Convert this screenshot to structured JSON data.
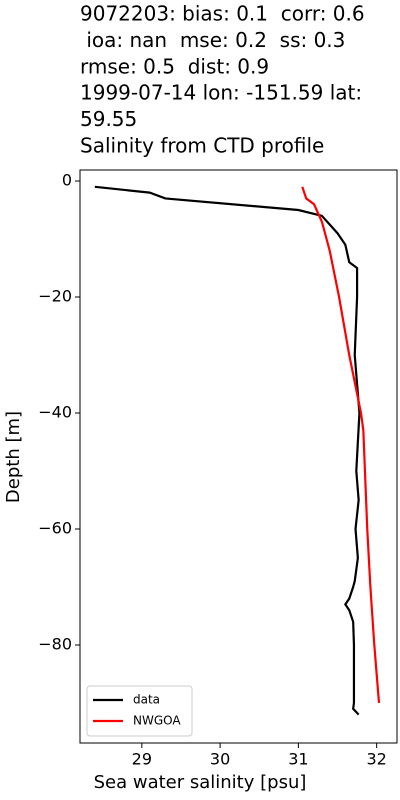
{
  "chart_data": {
    "type": "line",
    "title": [
      "9072203: bias: 0.1  corr: 0.6",
      " ioa: nan  mse: 0.2  ss: 0.3",
      "rmse: 0.5  dist: 0.9",
      "1999-07-14 lon: -151.59 lat:",
      "59.55",
      "Salinity from CTD profile"
    ],
    "xlabel": "Sea water salinity [psu]",
    "ylabel": "Depth [m]",
    "xlim": [
      28.21,
      32.26
    ],
    "ylim": [
      -96.9,
      1.9
    ],
    "xticks": [
      29,
      30,
      31,
      32
    ],
    "yticks": [
      0,
      {
        "value": -20,
        "label": "−20"
      },
      {
        "value": -40,
        "label": "−40"
      },
      {
        "value": -60,
        "label": "−60"
      },
      {
        "value": -80,
        "label": "−80"
      }
    ],
    "legend": "lower left",
    "series": [
      {
        "name": "data",
        "color": "#000000",
        "x": [
          28.4,
          29.1,
          29.3,
          31.0,
          31.3,
          31.5,
          31.6,
          31.65,
          31.75,
          31.75,
          31.72,
          31.78,
          31.74,
          31.77,
          31.73,
          31.76,
          31.72,
          31.7,
          31.65,
          31.6,
          31.65,
          31.7,
          31.71,
          31.71,
          31.7,
          31.77
        ],
        "values": [
          -1,
          -2,
          -3,
          -5,
          -6,
          -9,
          -11,
          -14,
          -15,
          -20,
          -30,
          -40,
          -50,
          -55,
          -60,
          -65,
          -69,
          -70,
          -72,
          -73,
          -74,
          -76,
          -80,
          -90,
          -91,
          -92
        ]
      },
      {
        "name": "NWGOA",
        "color": "#ff0000",
        "x": [
          31.05,
          31.1,
          31.2,
          31.3,
          31.4,
          31.52,
          31.65,
          31.8,
          31.83,
          31.88,
          31.92,
          31.97,
          32.03
        ],
        "values": [
          -1,
          -3,
          -4,
          -7,
          -12,
          -20,
          -30,
          -40,
          -43,
          -60,
          -70,
          -80,
          -90
        ]
      }
    ]
  }
}
